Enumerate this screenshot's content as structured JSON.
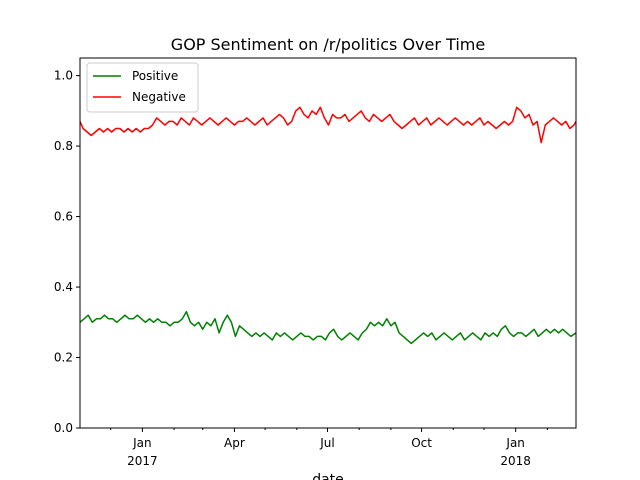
{
  "chart_data": {
    "type": "line",
    "title": "GOP Sentiment on /r/politics Over Time",
    "xlabel": "date",
    "ylabel": "",
    "xlim": [
      "2016-11-01",
      "2018-03-01"
    ],
    "ylim": [
      0.0,
      1.05
    ],
    "grid": false,
    "legend_position": "upper left",
    "yticks": [
      {
        "value": 0.0,
        "label": "0.0"
      },
      {
        "value": 0.2,
        "label": "0.2"
      },
      {
        "value": 0.4,
        "label": "0.4"
      },
      {
        "value": 0.6,
        "label": "0.6"
      },
      {
        "value": 0.8,
        "label": "0.8"
      },
      {
        "value": 1.0,
        "label": "1.0"
      }
    ],
    "xticks": [
      {
        "date": "2017-01-01",
        "label": "Jan",
        "sublabel": "2017"
      },
      {
        "date": "2017-04-01",
        "label": "Apr",
        "sublabel": ""
      },
      {
        "date": "2017-07-01",
        "label": "Jul",
        "sublabel": ""
      },
      {
        "date": "2017-10-01",
        "label": "Oct",
        "sublabel": ""
      },
      {
        "date": "2018-01-01",
        "label": "Jan",
        "sublabel": "2018"
      }
    ],
    "minor_xticks": [
      "2016-12-01",
      "2017-02-01",
      "2017-03-01",
      "2017-05-01",
      "2017-06-01",
      "2017-08-01",
      "2017-09-01",
      "2017-11-01",
      "2017-12-01",
      "2018-02-01"
    ],
    "series": [
      {
        "name": "Positive",
        "color": "#008000",
        "points": [
          [
            "2016-11-01",
            0.3
          ],
          [
            "2016-11-05",
            0.31
          ],
          [
            "2016-11-09",
            0.32
          ],
          [
            "2016-11-13",
            0.3
          ],
          [
            "2016-11-17",
            0.31
          ],
          [
            "2016-11-21",
            0.31
          ],
          [
            "2016-11-25",
            0.32
          ],
          [
            "2016-11-29",
            0.31
          ],
          [
            "2016-12-03",
            0.31
          ],
          [
            "2016-12-07",
            0.3
          ],
          [
            "2016-12-11",
            0.31
          ],
          [
            "2016-12-15",
            0.32
          ],
          [
            "2016-12-19",
            0.31
          ],
          [
            "2016-12-23",
            0.31
          ],
          [
            "2016-12-27",
            0.32
          ],
          [
            "2016-12-31",
            0.31
          ],
          [
            "2017-01-04",
            0.3
          ],
          [
            "2017-01-08",
            0.31
          ],
          [
            "2017-01-12",
            0.3
          ],
          [
            "2017-01-16",
            0.31
          ],
          [
            "2017-01-20",
            0.3
          ],
          [
            "2017-01-24",
            0.3
          ],
          [
            "2017-01-28",
            0.29
          ],
          [
            "2017-02-01",
            0.3
          ],
          [
            "2017-02-05",
            0.3
          ],
          [
            "2017-02-09",
            0.31
          ],
          [
            "2017-02-13",
            0.33
          ],
          [
            "2017-02-17",
            0.3
          ],
          [
            "2017-02-21",
            0.29
          ],
          [
            "2017-02-25",
            0.3
          ],
          [
            "2017-03-01",
            0.28
          ],
          [
            "2017-03-05",
            0.3
          ],
          [
            "2017-03-09",
            0.29
          ],
          [
            "2017-03-13",
            0.31
          ],
          [
            "2017-03-17",
            0.27
          ],
          [
            "2017-03-21",
            0.3
          ],
          [
            "2017-03-25",
            0.32
          ],
          [
            "2017-03-29",
            0.3
          ],
          [
            "2017-04-02",
            0.26
          ],
          [
            "2017-04-06",
            0.29
          ],
          [
            "2017-04-10",
            0.28
          ],
          [
            "2017-04-14",
            0.27
          ],
          [
            "2017-04-18",
            0.26
          ],
          [
            "2017-04-22",
            0.27
          ],
          [
            "2017-04-26",
            0.26
          ],
          [
            "2017-04-30",
            0.27
          ],
          [
            "2017-05-04",
            0.26
          ],
          [
            "2017-05-08",
            0.25
          ],
          [
            "2017-05-12",
            0.27
          ],
          [
            "2017-05-16",
            0.26
          ],
          [
            "2017-05-20",
            0.27
          ],
          [
            "2017-05-24",
            0.26
          ],
          [
            "2017-05-28",
            0.25
          ],
          [
            "2017-06-01",
            0.26
          ],
          [
            "2017-06-05",
            0.27
          ],
          [
            "2017-06-09",
            0.26
          ],
          [
            "2017-06-13",
            0.26
          ],
          [
            "2017-06-17",
            0.25
          ],
          [
            "2017-06-21",
            0.26
          ],
          [
            "2017-06-25",
            0.26
          ],
          [
            "2017-06-29",
            0.25
          ],
          [
            "2017-07-03",
            0.27
          ],
          [
            "2017-07-07",
            0.28
          ],
          [
            "2017-07-11",
            0.26
          ],
          [
            "2017-07-15",
            0.25
          ],
          [
            "2017-07-19",
            0.26
          ],
          [
            "2017-07-23",
            0.27
          ],
          [
            "2017-07-27",
            0.26
          ],
          [
            "2017-07-31",
            0.25
          ],
          [
            "2017-08-04",
            0.27
          ],
          [
            "2017-08-08",
            0.28
          ],
          [
            "2017-08-12",
            0.3
          ],
          [
            "2017-08-16",
            0.29
          ],
          [
            "2017-08-20",
            0.3
          ],
          [
            "2017-08-24",
            0.29
          ],
          [
            "2017-08-28",
            0.31
          ],
          [
            "2017-09-01",
            0.29
          ],
          [
            "2017-09-05",
            0.3
          ],
          [
            "2017-09-09",
            0.27
          ],
          [
            "2017-09-13",
            0.26
          ],
          [
            "2017-09-17",
            0.25
          ],
          [
            "2017-09-21",
            0.24
          ],
          [
            "2017-09-25",
            0.25
          ],
          [
            "2017-09-29",
            0.26
          ],
          [
            "2017-10-03",
            0.27
          ],
          [
            "2017-10-07",
            0.26
          ],
          [
            "2017-10-11",
            0.27
          ],
          [
            "2017-10-15",
            0.25
          ],
          [
            "2017-10-19",
            0.26
          ],
          [
            "2017-10-23",
            0.27
          ],
          [
            "2017-10-27",
            0.26
          ],
          [
            "2017-10-31",
            0.25
          ],
          [
            "2017-11-04",
            0.26
          ],
          [
            "2017-11-08",
            0.27
          ],
          [
            "2017-11-12",
            0.25
          ],
          [
            "2017-11-16",
            0.26
          ],
          [
            "2017-11-20",
            0.27
          ],
          [
            "2017-11-24",
            0.26
          ],
          [
            "2017-11-28",
            0.25
          ],
          [
            "2017-12-02",
            0.27
          ],
          [
            "2017-12-06",
            0.26
          ],
          [
            "2017-12-10",
            0.27
          ],
          [
            "2017-12-14",
            0.26
          ],
          [
            "2017-12-18",
            0.28
          ],
          [
            "2017-12-22",
            0.29
          ],
          [
            "2017-12-26",
            0.27
          ],
          [
            "2017-12-30",
            0.26
          ],
          [
            "2018-01-03",
            0.27
          ],
          [
            "2018-01-07",
            0.27
          ],
          [
            "2018-01-11",
            0.26
          ],
          [
            "2018-01-15",
            0.27
          ],
          [
            "2018-01-19",
            0.28
          ],
          [
            "2018-01-23",
            0.26
          ],
          [
            "2018-01-27",
            0.27
          ],
          [
            "2018-01-31",
            0.28
          ],
          [
            "2018-02-04",
            0.27
          ],
          [
            "2018-02-08",
            0.28
          ],
          [
            "2018-02-12",
            0.27
          ],
          [
            "2018-02-16",
            0.28
          ],
          [
            "2018-02-20",
            0.27
          ],
          [
            "2018-02-24",
            0.26
          ],
          [
            "2018-03-01",
            0.27
          ]
        ]
      },
      {
        "name": "Negative",
        "color": "#ff0000",
        "points": [
          [
            "2016-11-01",
            0.87
          ],
          [
            "2016-11-04",
            0.85
          ],
          [
            "2016-11-08",
            0.84
          ],
          [
            "2016-11-12",
            0.83
          ],
          [
            "2016-11-16",
            0.84
          ],
          [
            "2016-11-20",
            0.85
          ],
          [
            "2016-11-24",
            0.84
          ],
          [
            "2016-11-28",
            0.85
          ],
          [
            "2016-12-02",
            0.84
          ],
          [
            "2016-12-06",
            0.85
          ],
          [
            "2016-12-10",
            0.85
          ],
          [
            "2016-12-14",
            0.84
          ],
          [
            "2016-12-18",
            0.85
          ],
          [
            "2016-12-22",
            0.84
          ],
          [
            "2016-12-26",
            0.85
          ],
          [
            "2016-12-30",
            0.84
          ],
          [
            "2017-01-03",
            0.85
          ],
          [
            "2017-01-07",
            0.85
          ],
          [
            "2017-01-11",
            0.86
          ],
          [
            "2017-01-15",
            0.88
          ],
          [
            "2017-01-19",
            0.87
          ],
          [
            "2017-01-23",
            0.86
          ],
          [
            "2017-01-27",
            0.87
          ],
          [
            "2017-01-31",
            0.87
          ],
          [
            "2017-02-04",
            0.86
          ],
          [
            "2017-02-08",
            0.88
          ],
          [
            "2017-02-12",
            0.87
          ],
          [
            "2017-02-16",
            0.86
          ],
          [
            "2017-02-20",
            0.88
          ],
          [
            "2017-02-24",
            0.87
          ],
          [
            "2017-02-28",
            0.86
          ],
          [
            "2017-03-04",
            0.87
          ],
          [
            "2017-03-08",
            0.88
          ],
          [
            "2017-03-12",
            0.87
          ],
          [
            "2017-03-16",
            0.86
          ],
          [
            "2017-03-20",
            0.87
          ],
          [
            "2017-03-24",
            0.88
          ],
          [
            "2017-03-28",
            0.87
          ],
          [
            "2017-04-01",
            0.86
          ],
          [
            "2017-04-05",
            0.87
          ],
          [
            "2017-04-09",
            0.87
          ],
          [
            "2017-04-13",
            0.88
          ],
          [
            "2017-04-17",
            0.87
          ],
          [
            "2017-04-21",
            0.86
          ],
          [
            "2017-04-25",
            0.87
          ],
          [
            "2017-04-29",
            0.88
          ],
          [
            "2017-05-03",
            0.86
          ],
          [
            "2017-05-07",
            0.87
          ],
          [
            "2017-05-11",
            0.88
          ],
          [
            "2017-05-15",
            0.89
          ],
          [
            "2017-05-19",
            0.88
          ],
          [
            "2017-05-23",
            0.86
          ],
          [
            "2017-05-27",
            0.87
          ],
          [
            "2017-05-31",
            0.9
          ],
          [
            "2017-06-04",
            0.91
          ],
          [
            "2017-06-08",
            0.89
          ],
          [
            "2017-06-12",
            0.88
          ],
          [
            "2017-06-16",
            0.9
          ],
          [
            "2017-06-20",
            0.89
          ],
          [
            "2017-06-24",
            0.91
          ],
          [
            "2017-06-28",
            0.88
          ],
          [
            "2017-07-02",
            0.86
          ],
          [
            "2017-07-06",
            0.89
          ],
          [
            "2017-07-10",
            0.88
          ],
          [
            "2017-07-14",
            0.88
          ],
          [
            "2017-07-18",
            0.89
          ],
          [
            "2017-07-22",
            0.87
          ],
          [
            "2017-07-26",
            0.88
          ],
          [
            "2017-07-30",
            0.89
          ],
          [
            "2017-08-03",
            0.9
          ],
          [
            "2017-08-07",
            0.88
          ],
          [
            "2017-08-11",
            0.87
          ],
          [
            "2017-08-15",
            0.89
          ],
          [
            "2017-08-19",
            0.88
          ],
          [
            "2017-08-23",
            0.87
          ],
          [
            "2017-08-27",
            0.88
          ],
          [
            "2017-08-31",
            0.89
          ],
          [
            "2017-09-04",
            0.87
          ],
          [
            "2017-09-08",
            0.86
          ],
          [
            "2017-09-12",
            0.85
          ],
          [
            "2017-09-16",
            0.86
          ],
          [
            "2017-09-20",
            0.87
          ],
          [
            "2017-09-24",
            0.88
          ],
          [
            "2017-09-28",
            0.86
          ],
          [
            "2017-10-02",
            0.87
          ],
          [
            "2017-10-06",
            0.88
          ],
          [
            "2017-10-10",
            0.86
          ],
          [
            "2017-10-14",
            0.87
          ],
          [
            "2017-10-18",
            0.88
          ],
          [
            "2017-10-22",
            0.87
          ],
          [
            "2017-10-26",
            0.86
          ],
          [
            "2017-10-30",
            0.87
          ],
          [
            "2017-11-03",
            0.88
          ],
          [
            "2017-11-07",
            0.87
          ],
          [
            "2017-11-11",
            0.86
          ],
          [
            "2017-11-15",
            0.87
          ],
          [
            "2017-11-19",
            0.86
          ],
          [
            "2017-11-23",
            0.87
          ],
          [
            "2017-11-27",
            0.88
          ],
          [
            "2017-12-01",
            0.86
          ],
          [
            "2017-12-05",
            0.87
          ],
          [
            "2017-12-09",
            0.86
          ],
          [
            "2017-12-13",
            0.85
          ],
          [
            "2017-12-17",
            0.86
          ],
          [
            "2017-12-21",
            0.87
          ],
          [
            "2017-12-25",
            0.86
          ],
          [
            "2017-12-29",
            0.87
          ],
          [
            "2018-01-02",
            0.91
          ],
          [
            "2018-01-06",
            0.9
          ],
          [
            "2018-01-10",
            0.88
          ],
          [
            "2018-01-14",
            0.89
          ],
          [
            "2018-01-18",
            0.86
          ],
          [
            "2018-01-22",
            0.87
          ],
          [
            "2018-01-26",
            0.81
          ],
          [
            "2018-01-30",
            0.86
          ],
          [
            "2018-02-03",
            0.87
          ],
          [
            "2018-02-07",
            0.88
          ],
          [
            "2018-02-11",
            0.87
          ],
          [
            "2018-02-15",
            0.86
          ],
          [
            "2018-02-19",
            0.87
          ],
          [
            "2018-02-23",
            0.85
          ],
          [
            "2018-02-27",
            0.86
          ],
          [
            "2018-03-01",
            0.87
          ]
        ]
      }
    ]
  }
}
